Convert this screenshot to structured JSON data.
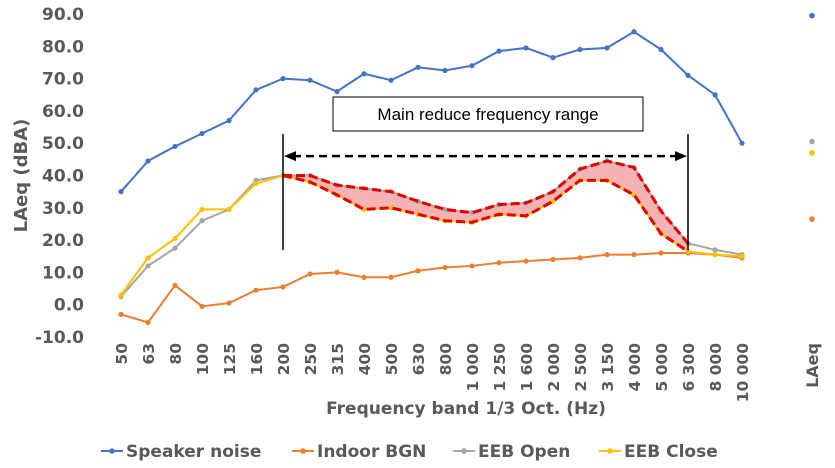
{
  "chart_data": {
    "type": "line",
    "ylabel": "LAeq (dBA)",
    "xlabel": "Frequency band 1/3 Oct. (Hz)",
    "ylim": [
      -10,
      90
    ],
    "yticks": [
      "90.0",
      "80.0",
      "70.0",
      "60.0",
      "50.0",
      "40.0",
      "30.0",
      "20.0",
      "10.0",
      "0.0",
      "-10.0"
    ],
    "ytick_values": [
      90,
      80,
      70,
      60,
      50,
      40,
      30,
      20,
      10,
      0,
      -10
    ],
    "categories": [
      "50",
      "63",
      "80",
      "100",
      "125",
      "160",
      "200",
      "250",
      "315",
      "400",
      "500",
      "630",
      "800",
      "1 000",
      "1 250",
      "1 600",
      "2 000",
      "2 500",
      "3 150",
      "4 000",
      "5 000",
      "6 300",
      "8 000",
      "10 000"
    ],
    "laeq_label": "LAeq",
    "grid": false,
    "legend_position": "bottom",
    "series": [
      {
        "name": "Speaker noise",
        "color": "#4472C4",
        "values": [
          35,
          44.5,
          49,
          53,
          57,
          66.5,
          70,
          69.5,
          66,
          71.5,
          69.5,
          73.5,
          72.5,
          74,
          78.5,
          79.5,
          76.5,
          79,
          79.5,
          84.5,
          79,
          71,
          65,
          50
        ],
        "laeq": 89.5
      },
      {
        "name": "Indoor BGN",
        "color": "#ED7D31",
        "values": [
          -3,
          -5.5,
          6,
          -0.5,
          0.5,
          4.5,
          5.5,
          9.5,
          10,
          8.5,
          8.5,
          10.5,
          11.5,
          12,
          13,
          13.5,
          14,
          14.5,
          15.5,
          15.5,
          16,
          16,
          15.5,
          14.5
        ],
        "laeq": 26.5
      },
      {
        "name": "EEB Open",
        "color": "#A5A5A5",
        "values": [
          2.5,
          12,
          17.5,
          26,
          29.5,
          38.5,
          40,
          40,
          37,
          36,
          35,
          32,
          29.5,
          28.5,
          31,
          31.5,
          35,
          42,
          44.5,
          42.5,
          29,
          19,
          17,
          15.5
        ],
        "laeq": 50.5
      },
      {
        "name": "EEB Close",
        "color": "#FFC000",
        "values": [
          3,
          14.5,
          20.5,
          29.5,
          29.5,
          37.5,
          40,
          38,
          34,
          29.5,
          30,
          28,
          26,
          25.5,
          28,
          27.5,
          32,
          38.5,
          38.5,
          34,
          22,
          16.5,
          15.5,
          15
        ],
        "laeq": 47
      }
    ],
    "highlight": {
      "from": "200",
      "to": "6 300",
      "upper_series": "EEB Open",
      "lower_series": "EEB Close",
      "fill": "#F4A6A6",
      "outline": "#E00000"
    },
    "annotation": {
      "text": "Main reduce frequency range",
      "from": "200",
      "to": "6 300",
      "y": 46
    }
  }
}
